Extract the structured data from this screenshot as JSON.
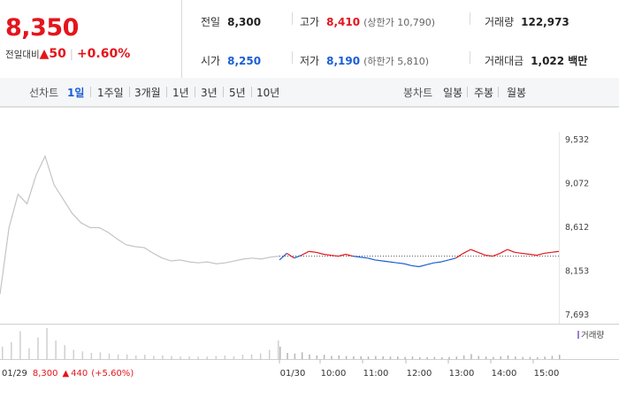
{
  "quote": {
    "price": "8,350",
    "change_label": "전일대비",
    "change_arrow": "▲",
    "change_value": "50",
    "change_pct": "+0.60%"
  },
  "stats": {
    "prev_close_label": "전일",
    "prev_close": "8,300",
    "high_label": "고가",
    "high": "8,410",
    "upper_limit": "(상한가 10,790)",
    "volume_label": "거래량",
    "volume": "122,973",
    "open_label": "시가",
    "open": "8,250",
    "low_label": "저가",
    "low": "8,190",
    "lower_limit": "(하한가 5,810)",
    "amount_label": "거래대금",
    "amount": "1,022 백만"
  },
  "tabs": {
    "line_label": "선차트",
    "periods": [
      "1일",
      "1주일",
      "3개월",
      "1년",
      "3년",
      "5년",
      "10년"
    ],
    "selected_period": "1일",
    "candle_label": "봉차트",
    "candles": [
      "일봉",
      "주봉",
      "월봉"
    ]
  },
  "colors": {
    "up": "#e4151c",
    "down": "#1a5ed6",
    "prev_day": "#c4c4c4",
    "volume": "#cfcfcf"
  },
  "chart_data": {
    "type": "line",
    "y_ticks": [
      "9,532",
      "9,072",
      "8,612",
      "8,153",
      "7,693"
    ],
    "ylim": [
      7693,
      9532
    ],
    "x_ticks": [
      "01/30",
      "10:00",
      "11:00",
      "12:00",
      "13:00",
      "14:00",
      "15:00"
    ],
    "prev_close": 8300,
    "series": [
      {
        "x": [
          "01/29 09:00",
          "09:10",
          "09:20",
          "09:30",
          "09:40",
          "09:50",
          "10:00",
          "10:10",
          "10:20",
          "10:30",
          "10:40",
          "10:50",
          "11:00",
          "11:10",
          "11:20",
          "11:30",
          "11:40",
          "11:50",
          "12:00",
          "12:15",
          "12:30",
          "12:45",
          "13:00",
          "13:15",
          "13:30",
          "13:45",
          "14:00",
          "14:15",
          "14:30",
          "14:45",
          "15:00",
          "15:20"
        ],
        "values": [
          7900,
          8600,
          8950,
          8850,
          9150,
          9350,
          9050,
          8900,
          8750,
          8650,
          8600,
          8600,
          8550,
          8480,
          8420,
          8400,
          8390,
          8330,
          8280,
          8250,
          8260,
          8240,
          8230,
          8240,
          8220,
          8230,
          8250,
          8270,
          8280,
          8270,
          8290,
          8300
        ]
      },
      {
        "x": [
          "01/30 09:00",
          "09:10",
          "09:20",
          "09:30",
          "09:40",
          "09:50",
          "10:00",
          "10:10",
          "10:20",
          "10:30",
          "10:40",
          "10:50",
          "11:00",
          "11:10",
          "11:20",
          "11:30",
          "11:40",
          "11:50",
          "12:00",
          "12:10",
          "12:20",
          "12:30",
          "12:40",
          "12:50",
          "13:00",
          "13:10",
          "13:20",
          "13:30",
          "13:40",
          "13:50",
          "14:00",
          "14:10",
          "14:20",
          "14:30",
          "14:40",
          "14:50",
          "15:00",
          "15:10",
          "15:20"
        ],
        "values": [
          8260,
          8330,
          8280,
          8310,
          8350,
          8340,
          8320,
          8310,
          8300,
          8320,
          8300,
          8290,
          8280,
          8260,
          8250,
          8240,
          8230,
          8220,
          8200,
          8190,
          8210,
          8230,
          8240,
          8260,
          8280,
          8330,
          8370,
          8340,
          8310,
          8300,
          8330,
          8370,
          8340,
          8330,
          8320,
          8310,
          8330,
          8340,
          8350
        ]
      }
    ],
    "volume_label": "거래량",
    "volume": {
      "prev": [
        40,
        55,
        90,
        35,
        70,
        100,
        60,
        45,
        30,
        25,
        20,
        22,
        18,
        15,
        15,
        12,
        14,
        10,
        12,
        10,
        8,
        9,
        8,
        8,
        10,
        12,
        9,
        14,
        15,
        18,
        30,
        60
      ],
      "today": [
        40,
        20,
        18,
        22,
        15,
        12,
        14,
        10,
        12,
        10,
        9,
        9,
        8,
        10,
        9,
        8,
        8,
        7,
        8,
        6,
        6,
        7,
        6,
        7,
        8,
        12,
        16,
        10,
        8,
        7,
        9,
        12,
        8,
        7,
        7,
        6,
        8,
        10,
        14
      ]
    },
    "footer": {
      "date": "01/29",
      "price": "8,300",
      "arrow": "▲",
      "change": "440",
      "pct": "(+5.60%)"
    }
  }
}
